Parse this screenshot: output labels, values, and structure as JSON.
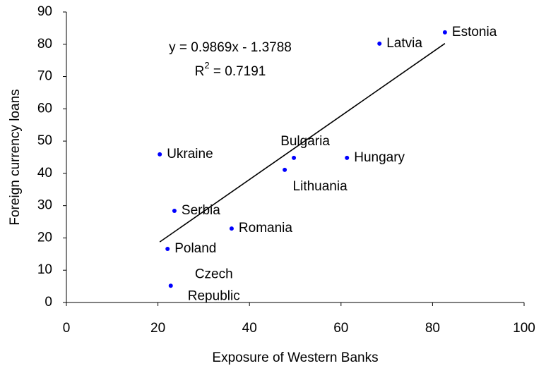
{
  "chart_data": {
    "type": "scatter",
    "xlabel": "Exposure of Western Banks",
    "ylabel": "Foreign currency loans",
    "labels": [
      "Estonia",
      "Latvia",
      "Bulgaria",
      "Hungary",
      "Lithuania",
      "Ukraine",
      "Serbia",
      "Romania",
      "Poland",
      [
        "Czech",
        "Republic"
      ]
    ],
    "x": [
      82.7,
      68.4,
      49.7,
      61.3,
      47.7,
      20.4,
      23.6,
      36.1,
      22.1,
      22.8
    ],
    "values": [
      83.7,
      80.2,
      44.8,
      44.8,
      41.1,
      45.9,
      28.4,
      22.9,
      16.6,
      5.2
    ],
    "color": "#0000ff",
    "trendline": {
      "slope": 0.9869,
      "intercept": -1.3788,
      "color": "#000000",
      "equation": "y = 0.9869x - 1.3788",
      "r2_label": [
        "R",
        "2",
        " = 0.7191"
      ]
    },
    "xlim": [
      0,
      100
    ],
    "xticks": [
      0,
      20,
      40,
      60,
      80,
      100
    ],
    "ylim": [
      0,
      90
    ],
    "yticks": [
      0,
      10,
      20,
      30,
      40,
      50,
      60,
      70,
      80,
      90
    ]
  }
}
